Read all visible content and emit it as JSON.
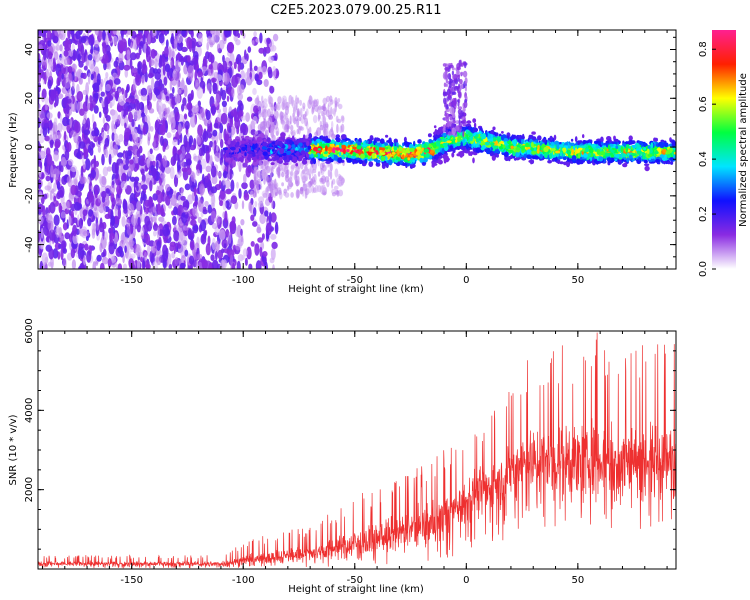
{
  "title": "C2E5.2023.079.00.25.R11",
  "chart_data": [
    {
      "type": "heatmap",
      "xlabel": "Height of straight line (km)",
      "ylabel": "Frequency (Hz)",
      "xlim": [
        -192,
        94
      ],
      "ylim": [
        -50,
        48
      ],
      "xticks": [
        -150,
        -100,
        -50,
        0,
        50
      ],
      "yticks": [
        -40,
        -20,
        0,
        20,
        40
      ],
      "colorbar": {
        "label": "Normalized spectral amplitude",
        "range": [
          0.0,
          0.87
        ],
        "ticks": [
          0.0,
          0.2,
          0.4,
          0.6,
          0.8
        ],
        "colors": [
          "#ffffff",
          "#8a2be2",
          "#1010ff",
          "#00e5ff",
          "#00ff40",
          "#ffff00",
          "#ff2000",
          "#ff2090"
        ]
      },
      "band_center_hz": [
        {
          "x": -100,
          "y": -1
        },
        {
          "x": -60,
          "y": -1
        },
        {
          "x": -40,
          "y": -2
        },
        {
          "x": -25,
          "y": -3
        },
        {
          "x": -15,
          "y": -1
        },
        {
          "x": -8,
          "y": 3
        },
        {
          "x": 0,
          "y": 4
        },
        {
          "x": 20,
          "y": 0
        },
        {
          "x": 50,
          "y": -2
        },
        {
          "x": 94,
          "y": -2
        }
      ],
      "grid": false
    },
    {
      "type": "line",
      "xlabel": "Height of straight line (km)",
      "ylabel": "SNR (10 * v/v)",
      "xlim": [
        -192,
        94
      ],
      "ylim": [
        0,
        6000
      ],
      "xticks": [
        -150,
        -100,
        -50,
        0,
        50
      ],
      "yticks": [
        2000,
        4000,
        6000
      ],
      "color": "#ee3030",
      "envelope": [
        {
          "x": -192,
          "low": 20,
          "mean": 130,
          "high": 350
        },
        {
          "x": -110,
          "low": 20,
          "mean": 130,
          "high": 350
        },
        {
          "x": -95,
          "low": 30,
          "mean": 250,
          "high": 800
        },
        {
          "x": -70,
          "low": 50,
          "mean": 400,
          "high": 1100
        },
        {
          "x": -50,
          "low": 60,
          "mean": 650,
          "high": 1900
        },
        {
          "x": -30,
          "low": 100,
          "mean": 900,
          "high": 2300
        },
        {
          "x": -10,
          "low": 200,
          "mean": 1300,
          "high": 3000
        },
        {
          "x": 0,
          "low": 400,
          "mean": 1800,
          "high": 3500
        },
        {
          "x": 15,
          "low": 600,
          "mean": 2200,
          "high": 4300
        },
        {
          "x": 25,
          "low": 900,
          "mean": 2700,
          "high": 5500
        },
        {
          "x": 60,
          "low": 1000,
          "mean": 2800,
          "high": 6000
        },
        {
          "x": 94,
          "low": 1000,
          "mean": 2700,
          "high": 5700
        }
      ],
      "grid": false
    }
  ]
}
